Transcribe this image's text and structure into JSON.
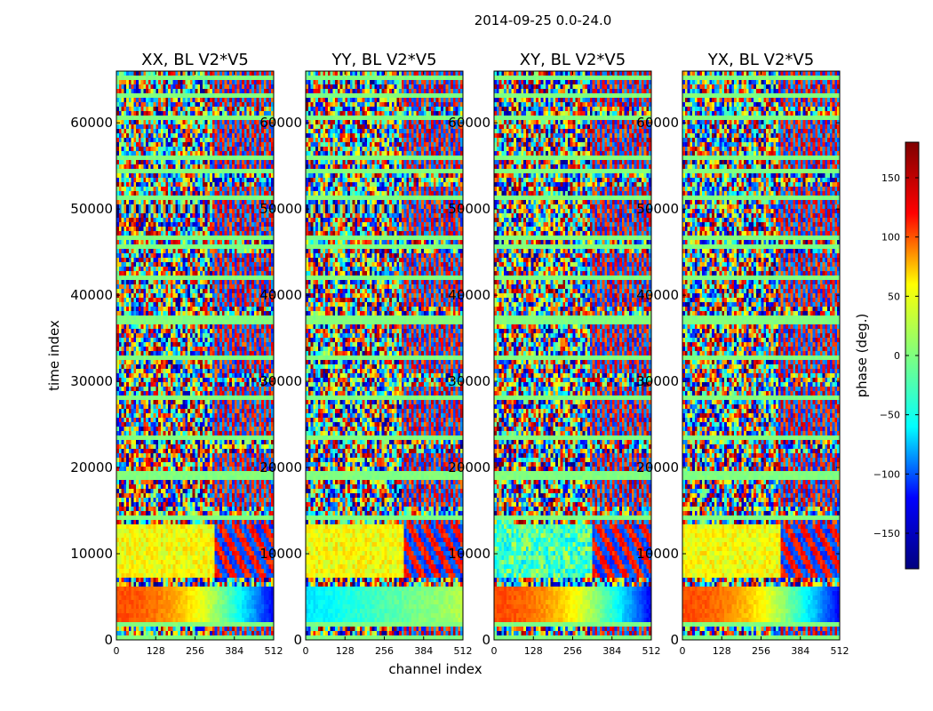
{
  "figure_title": "2014-09-25 0.0-24.0",
  "colormap": {
    "name": "jet",
    "stops": [
      "#00007f",
      "#0000ff",
      "#00ffff",
      "#7fff7f",
      "#ffff00",
      "#ff0000",
      "#7f0000"
    ],
    "neutral": "#7dfa80",
    "frame": "#000000"
  },
  "chart_data": [
    {
      "type": "heatmap",
      "title": "XX, BL V2*V5",
      "xlabel": "channel index",
      "ylabel": "time index",
      "xlim": [
        0,
        512
      ],
      "ylim": [
        0,
        66000
      ],
      "xticks": [
        0,
        128,
        256,
        384,
        512
      ],
      "yticks": [
        0,
        10000,
        20000,
        30000,
        40000,
        50000,
        60000
      ],
      "value": "phase (deg.)"
    },
    {
      "type": "heatmap",
      "title": "YY, BL V2*V5",
      "xlabel": "",
      "ylabel": "",
      "xlim": [
        0,
        512
      ],
      "ylim": [
        0,
        66000
      ],
      "xticks": [
        0,
        128,
        256,
        384,
        512
      ],
      "yticks": [
        0,
        10000,
        20000,
        30000,
        40000,
        50000,
        60000
      ],
      "value": "phase (deg.)"
    },
    {
      "type": "heatmap",
      "title": "XY, BL V2*V5",
      "xlabel": "",
      "ylabel": "",
      "xlim": [
        0,
        512
      ],
      "ylim": [
        0,
        66000
      ],
      "xticks": [
        0,
        128,
        256,
        384,
        512
      ],
      "yticks": [
        0,
        10000,
        20000,
        30000,
        40000,
        50000,
        60000
      ],
      "value": "phase (deg.)"
    },
    {
      "type": "heatmap",
      "title": "YX, BL V2*V5",
      "xlabel": "",
      "ylabel": "",
      "xlim": [
        0,
        512
      ],
      "ylim": [
        0,
        66000
      ],
      "xticks": [
        0,
        128,
        256,
        384,
        512
      ],
      "yticks": [
        0,
        10000,
        20000,
        30000,
        40000,
        50000,
        60000
      ],
      "value": "phase (deg.)"
    }
  ],
  "colorbar": {
    "label": "phase (deg.)",
    "range": [
      -180,
      180
    ],
    "ticks": [
      -150,
      -100,
      -50,
      0,
      50,
      100,
      150
    ],
    "tick_labels": [
      "−150",
      "−100",
      "−50",
      "0",
      "50",
      "100",
      "150"
    ]
  }
}
